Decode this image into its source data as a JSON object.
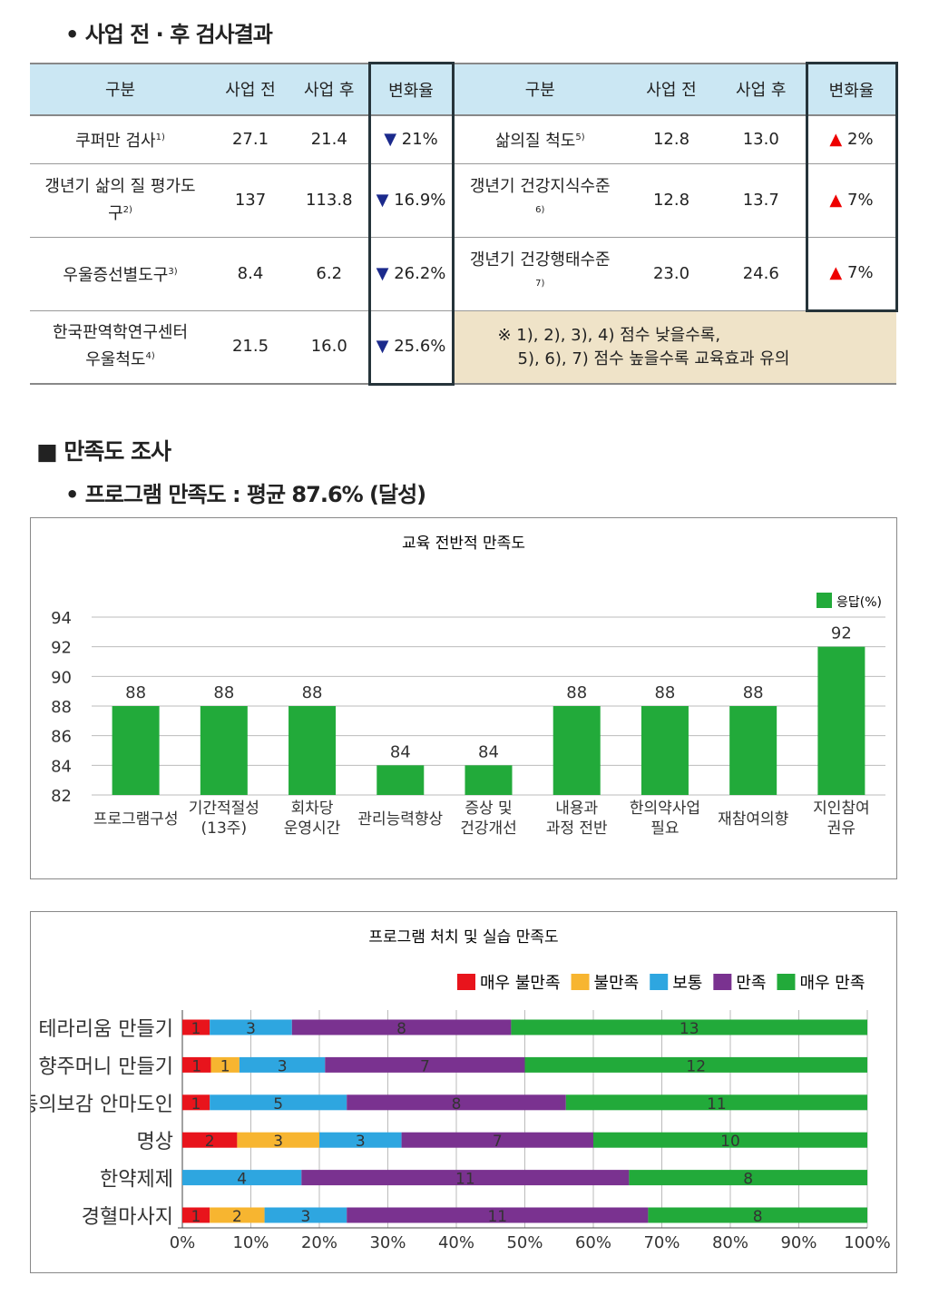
{
  "section1_title": "• 사업 전 · 후 검사결과",
  "table": {
    "headers": [
      "구분",
      "사업 전",
      "사업 후",
      "변화율"
    ],
    "left_rows": [
      {
        "name": "쿠퍼만 검사",
        "sup": "1)",
        "before": "27.1",
        "after": "21.4",
        "change": "21%",
        "dir": "down"
      },
      {
        "name": "갱년기 삶의 질 평가도구",
        "sup": "2)",
        "before": "137",
        "after": "113.8",
        "change": "16.9%",
        "dir": "down"
      },
      {
        "name": "우울증선별도구",
        "sup": "3)",
        "before": "8.4",
        "after": "6.2",
        "change": "26.2%",
        "dir": "down"
      },
      {
        "name": "한국판역학연구센터 우울척도",
        "sup": "4)",
        "before": "21.5",
        "after": "16.0",
        "change": "25.6%",
        "dir": "down"
      }
    ],
    "right_rows": [
      {
        "name": "삶의질 척도",
        "sup": "5)",
        "before": "12.8",
        "after": "13.0",
        "change": "2%",
        "dir": "up"
      },
      {
        "name": "갱년기 건강지식수준",
        "sup": "6)",
        "before": "12.8",
        "after": "13.7",
        "change": "7%",
        "dir": "up"
      },
      {
        "name": "갱년기 건강행태수준",
        "sup": "7)",
        "before": "23.0",
        "after": "24.6",
        "change": "7%",
        "dir": "up"
      }
    ],
    "note_line1": "※ 1), 2), 3), 4) 점수 낮을수록,",
    "note_line2": "5), 6), 7) 점수 높을수록 교육효과 유의"
  },
  "section2_title": "■ 만족도 조사",
  "section2_sub": "• 프로그램 만족도 : 평균 87.6% (달성)",
  "chart_data": [
    {
      "type": "bar",
      "title": "교육 전반적 만족도",
      "categories": [
        [
          "프로그램구성"
        ],
        [
          "기간적절성",
          "(13주)"
        ],
        [
          "회차당",
          "운영시간"
        ],
        [
          "관리능력향상"
        ],
        [
          "증상 및",
          "건강개선"
        ],
        [
          "내용과",
          "과정 전반"
        ],
        [
          "한의약사업",
          "필요"
        ],
        [
          "재참여의향"
        ],
        [
          "지인참여",
          "권유"
        ]
      ],
      "series": [
        {
          "name": "응답(%)",
          "values": [
            88,
            88,
            88,
            84,
            84,
            88,
            88,
            88,
            92
          ],
          "color": "#22aa3a"
        }
      ],
      "ylim": [
        82,
        94
      ],
      "yticks": [
        82,
        84,
        86,
        88,
        90,
        92,
        94
      ],
      "grid": true,
      "legend": "top-right"
    },
    {
      "type": "bar",
      "stacked": "percent",
      "orientation": "horizontal",
      "title": "프로그램 처치 및 실습 만족도",
      "categories": [
        "테라리움 만들기",
        "향주머니 만들기",
        "동의보감 안마도인",
        "명상",
        "한약제제",
        "경혈마사지"
      ],
      "series": [
        {
          "name": "매우 불만족",
          "color": "#e8141c",
          "values": [
            1,
            1,
            1,
            2,
            0,
            1
          ]
        },
        {
          "name": "불만족",
          "color": "#f7b530",
          "values": [
            0,
            1,
            0,
            3,
            0,
            2
          ]
        },
        {
          "name": "보통",
          "color": "#2ea6e0",
          "values": [
            3,
            3,
            5,
            3,
            4,
            3
          ]
        },
        {
          "name": "만족",
          "color": "#7a3290",
          "values": [
            8,
            7,
            8,
            7,
            11,
            11
          ]
        },
        {
          "name": "매우 만족",
          "color": "#22aa3a",
          "values": [
            13,
            12,
            11,
            10,
            8,
            8
          ]
        }
      ],
      "xticks": [
        "0%",
        "10%",
        "20%",
        "30%",
        "40%",
        "50%",
        "60%",
        "70%",
        "80%",
        "90%",
        "100%"
      ],
      "legend": "top-right"
    }
  ]
}
